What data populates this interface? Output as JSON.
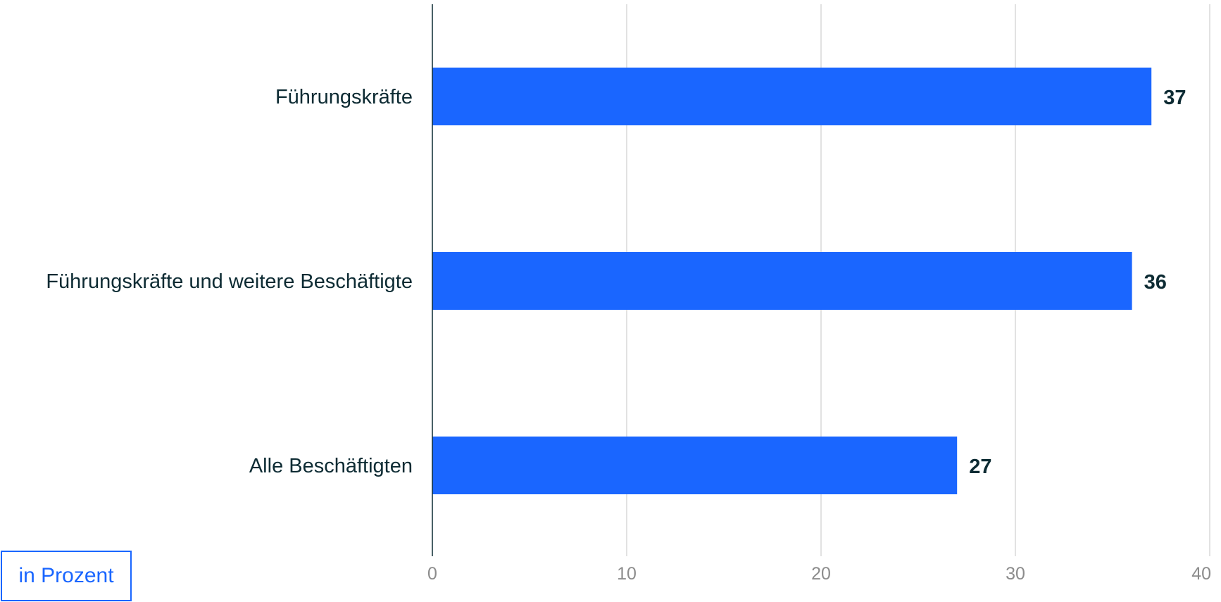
{
  "unit_label": "in Prozent",
  "colors": {
    "bar": "#1a66ff",
    "text": "#0d2b33",
    "axis": "#0d2b33",
    "grid": "#d9d9d9",
    "tick": "#8c8c8c"
  },
  "chart_data": {
    "type": "bar",
    "orientation": "horizontal",
    "categories": [
      "Führungskräfte",
      "Führungskräfte und weitere Beschäftigte",
      "Alle Beschäftigten"
    ],
    "values": [
      37,
      36,
      27
    ],
    "data_labels": [
      "37",
      "36",
      "27"
    ],
    "x_ticks": [
      0,
      10,
      20,
      30,
      40
    ],
    "xlim": [
      0,
      40
    ],
    "title": "",
    "xlabel": "",
    "ylabel": "",
    "grid": true,
    "legend": "none"
  }
}
